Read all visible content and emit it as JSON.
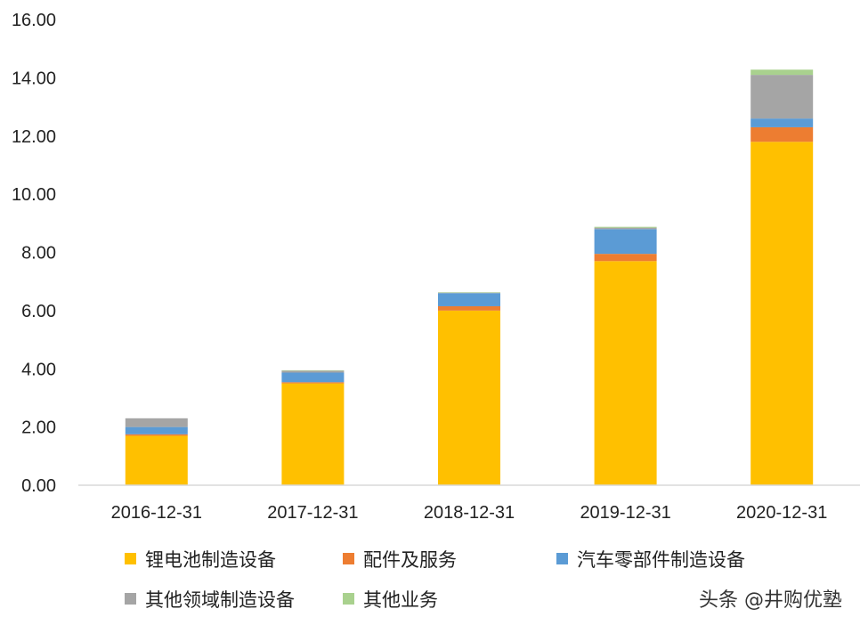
{
  "chart_data": {
    "type": "bar",
    "stacked": true,
    "categories": [
      "2016-12-31",
      "2017-12-31",
      "2018-12-31",
      "2019-12-31",
      "2020-12-31"
    ],
    "ylim": [
      0,
      16
    ],
    "yticks": [
      "0.00",
      "2.00",
      "4.00",
      "6.00",
      "8.00",
      "10.00",
      "12.00",
      "14.00",
      "16.00"
    ],
    "grid": false,
    "legend_position": "bottom",
    "series": [
      {
        "name": "锂电池制造设备",
        "color": "#FFC000",
        "values": [
          1.7,
          3.5,
          6.0,
          7.7,
          11.8
        ]
      },
      {
        "name": "配件及服务",
        "color": "#ED7D31",
        "values": [
          0.05,
          0.04,
          0.15,
          0.25,
          0.5
        ]
      },
      {
        "name": "汽车零部件制造设备",
        "color": "#5B9BD5",
        "values": [
          0.25,
          0.33,
          0.45,
          0.85,
          0.3
        ]
      },
      {
        "name": "其他领域制造设备",
        "color": "#A5A5A5",
        "values": [
          0.3,
          0.07,
          0.02,
          0.05,
          1.5
        ]
      },
      {
        "name": "其他业务",
        "color": "#A9D18E",
        "values": [
          0.0,
          0.01,
          0.01,
          0.03,
          0.18
        ]
      }
    ]
  },
  "watermark": "头条 @井购优塾"
}
